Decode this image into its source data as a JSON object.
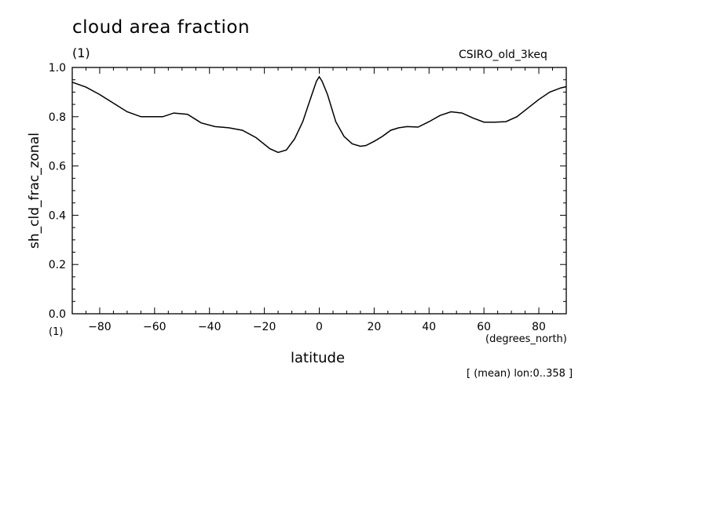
{
  "chart_data": {
    "type": "line",
    "title": "cloud area fraction",
    "title_unit": "(1)",
    "model_label": "CSIRO_old_3keq",
    "ylabel": "sh_cld_frac_zonal",
    "y_unit": "(1)",
    "xlabel": "latitude",
    "x_unit": "(degrees_north)",
    "footnote": "[ (mean) lon:0..358 ]",
    "xlim": [
      -90,
      90
    ],
    "ylim": [
      0.0,
      1.0
    ],
    "x_ticks": [
      -80,
      -60,
      -40,
      -20,
      0,
      20,
      40,
      60,
      80
    ],
    "x_tick_labels": [
      "−80",
      "−60",
      "−40",
      "−20",
      "0",
      "20",
      "40",
      "60",
      "80"
    ],
    "y_ticks": [
      0.0,
      0.2,
      0.4,
      0.6,
      0.8,
      1.0
    ],
    "y_tick_labels": [
      "0.0",
      "0.2",
      "0.4",
      "0.6",
      "0.8",
      "1.0"
    ],
    "grid": false,
    "series": [
      {
        "x": [
          -90,
          -85,
          -80,
          -75,
          -70,
          -65,
          -60,
          -57,
          -53,
          -48,
          -43,
          -38,
          -33,
          -28,
          -23,
          -18,
          -15,
          -12,
          -9,
          -6,
          -3,
          -1,
          0,
          1,
          3,
          6,
          9,
          12,
          15,
          17,
          20,
          23,
          26,
          29,
          32,
          36,
          40,
          44,
          48,
          52,
          56,
          60,
          64,
          68,
          72,
          76,
          80,
          84,
          88,
          90
        ],
        "y": [
          0.94,
          0.92,
          0.89,
          0.855,
          0.82,
          0.8,
          0.8,
          0.8,
          0.815,
          0.81,
          0.775,
          0.76,
          0.755,
          0.745,
          0.715,
          0.67,
          0.655,
          0.665,
          0.71,
          0.78,
          0.88,
          0.945,
          0.962,
          0.945,
          0.89,
          0.78,
          0.72,
          0.69,
          0.68,
          0.683,
          0.7,
          0.72,
          0.745,
          0.755,
          0.76,
          0.758,
          0.78,
          0.805,
          0.82,
          0.815,
          0.795,
          0.778,
          0.778,
          0.78,
          0.8,
          0.835,
          0.87,
          0.9,
          0.917,
          0.922
        ]
      }
    ]
  }
}
